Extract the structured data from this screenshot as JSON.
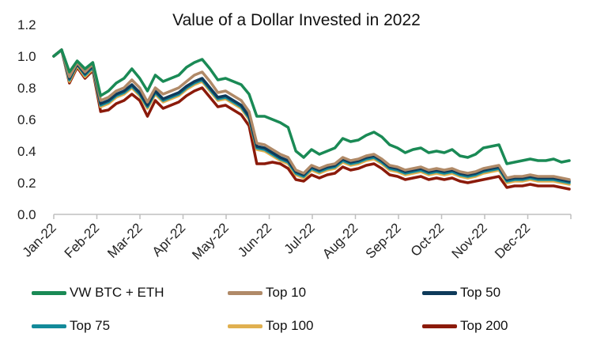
{
  "chart_data": {
    "type": "line",
    "title": "Value of a Dollar Invested in 2022",
    "xlabel": "",
    "ylabel": "",
    "ylim": [
      0,
      1.2
    ],
    "yticks": [
      "0.0",
      "0.2",
      "0.4",
      "0.6",
      "0.8",
      "1.0",
      "1.2"
    ],
    "xticks": [
      "Jan-22",
      "Feb-22",
      "Mar-22",
      "Apr-22",
      "May-22",
      "Jun-22",
      "Jul-22",
      "Aug-22",
      "Sep-22",
      "Oct-22",
      "Nov-22",
      "Dec-22"
    ],
    "grid": false,
    "legend_position": "bottom",
    "series": [
      {
        "name": "VW BTC + ETH",
        "color": "#1a8a55",
        "values": [
          1.0,
          1.04,
          0.9,
          0.97,
          0.92,
          0.96,
          0.75,
          0.78,
          0.83,
          0.86,
          0.92,
          0.86,
          0.78,
          0.88,
          0.84,
          0.86,
          0.88,
          0.93,
          0.96,
          0.98,
          0.92,
          0.85,
          0.86,
          0.84,
          0.82,
          0.76,
          0.62,
          0.62,
          0.6,
          0.58,
          0.55,
          0.4,
          0.36,
          0.41,
          0.38,
          0.4,
          0.42,
          0.48,
          0.46,
          0.47,
          0.5,
          0.52,
          0.49,
          0.44,
          0.42,
          0.39,
          0.41,
          0.42,
          0.39,
          0.4,
          0.39,
          0.41,
          0.37,
          0.36,
          0.38,
          0.42,
          0.43,
          0.44,
          0.32,
          0.33,
          0.34,
          0.35,
          0.34,
          0.34,
          0.35,
          0.33,
          0.34
        ]
      },
      {
        "name": "Top 10",
        "color": "#b08a68",
        "values": [
          1.0,
          1.04,
          0.87,
          0.96,
          0.9,
          0.95,
          0.72,
          0.74,
          0.78,
          0.8,
          0.85,
          0.8,
          0.71,
          0.8,
          0.76,
          0.78,
          0.8,
          0.84,
          0.88,
          0.9,
          0.84,
          0.77,
          0.78,
          0.75,
          0.72,
          0.65,
          0.45,
          0.44,
          0.41,
          0.38,
          0.36,
          0.28,
          0.26,
          0.31,
          0.29,
          0.31,
          0.32,
          0.36,
          0.34,
          0.35,
          0.37,
          0.38,
          0.35,
          0.31,
          0.3,
          0.28,
          0.29,
          0.3,
          0.28,
          0.29,
          0.28,
          0.29,
          0.27,
          0.26,
          0.27,
          0.29,
          0.3,
          0.31,
          0.23,
          0.24,
          0.24,
          0.25,
          0.24,
          0.24,
          0.24,
          0.23,
          0.22
        ]
      },
      {
        "name": "Top 50",
        "color": "#0e3a5a",
        "values": [
          1.0,
          1.04,
          0.86,
          0.95,
          0.89,
          0.94,
          0.7,
          0.72,
          0.76,
          0.78,
          0.82,
          0.77,
          0.69,
          0.78,
          0.73,
          0.75,
          0.77,
          0.81,
          0.84,
          0.86,
          0.8,
          0.74,
          0.75,
          0.72,
          0.69,
          0.62,
          0.43,
          0.42,
          0.39,
          0.36,
          0.34,
          0.27,
          0.25,
          0.3,
          0.28,
          0.3,
          0.31,
          0.35,
          0.33,
          0.34,
          0.36,
          0.37,
          0.34,
          0.3,
          0.29,
          0.27,
          0.28,
          0.29,
          0.27,
          0.28,
          0.27,
          0.28,
          0.26,
          0.25,
          0.26,
          0.28,
          0.29,
          0.3,
          0.22,
          0.23,
          0.23,
          0.24,
          0.23,
          0.23,
          0.23,
          0.22,
          0.21
        ]
      },
      {
        "name": "Top 75",
        "color": "#138a9a",
        "values": [
          1.0,
          1.04,
          0.85,
          0.95,
          0.88,
          0.93,
          0.69,
          0.71,
          0.75,
          0.77,
          0.81,
          0.76,
          0.68,
          0.77,
          0.72,
          0.74,
          0.76,
          0.8,
          0.83,
          0.85,
          0.79,
          0.73,
          0.74,
          0.71,
          0.68,
          0.61,
          0.42,
          0.41,
          0.38,
          0.35,
          0.33,
          0.26,
          0.24,
          0.29,
          0.27,
          0.29,
          0.3,
          0.34,
          0.32,
          0.33,
          0.35,
          0.36,
          0.33,
          0.29,
          0.28,
          0.26,
          0.27,
          0.28,
          0.26,
          0.27,
          0.26,
          0.27,
          0.25,
          0.24,
          0.25,
          0.27,
          0.28,
          0.29,
          0.21,
          0.22,
          0.22,
          0.23,
          0.22,
          0.22,
          0.22,
          0.21,
          0.2
        ]
      },
      {
        "name": "Top 100",
        "color": "#e0b050",
        "values": [
          1.0,
          1.04,
          0.84,
          0.94,
          0.87,
          0.92,
          0.68,
          0.7,
          0.74,
          0.76,
          0.8,
          0.75,
          0.67,
          0.76,
          0.71,
          0.73,
          0.75,
          0.79,
          0.82,
          0.84,
          0.78,
          0.72,
          0.73,
          0.7,
          0.67,
          0.6,
          0.41,
          0.4,
          0.37,
          0.34,
          0.32,
          0.25,
          0.23,
          0.28,
          0.26,
          0.28,
          0.29,
          0.33,
          0.31,
          0.32,
          0.34,
          0.35,
          0.32,
          0.28,
          0.27,
          0.25,
          0.26,
          0.27,
          0.25,
          0.26,
          0.25,
          0.26,
          0.24,
          0.23,
          0.24,
          0.26,
          0.27,
          0.28,
          0.2,
          0.21,
          0.21,
          0.22,
          0.21,
          0.21,
          0.21,
          0.2,
          0.19
        ]
      },
      {
        "name": "Top 200",
        "color": "#8b1a0a",
        "values": [
          1.0,
          1.04,
          0.83,
          0.93,
          0.86,
          0.91,
          0.65,
          0.66,
          0.7,
          0.72,
          0.76,
          0.72,
          0.62,
          0.72,
          0.67,
          0.69,
          0.71,
          0.75,
          0.78,
          0.8,
          0.74,
          0.68,
          0.69,
          0.66,
          0.63,
          0.56,
          0.32,
          0.32,
          0.33,
          0.32,
          0.29,
          0.22,
          0.21,
          0.25,
          0.23,
          0.25,
          0.26,
          0.3,
          0.28,
          0.29,
          0.31,
          0.32,
          0.29,
          0.25,
          0.24,
          0.22,
          0.23,
          0.24,
          0.22,
          0.23,
          0.22,
          0.23,
          0.21,
          0.2,
          0.21,
          0.22,
          0.23,
          0.24,
          0.17,
          0.18,
          0.18,
          0.19,
          0.18,
          0.18,
          0.18,
          0.17,
          0.16
        ]
      }
    ]
  }
}
